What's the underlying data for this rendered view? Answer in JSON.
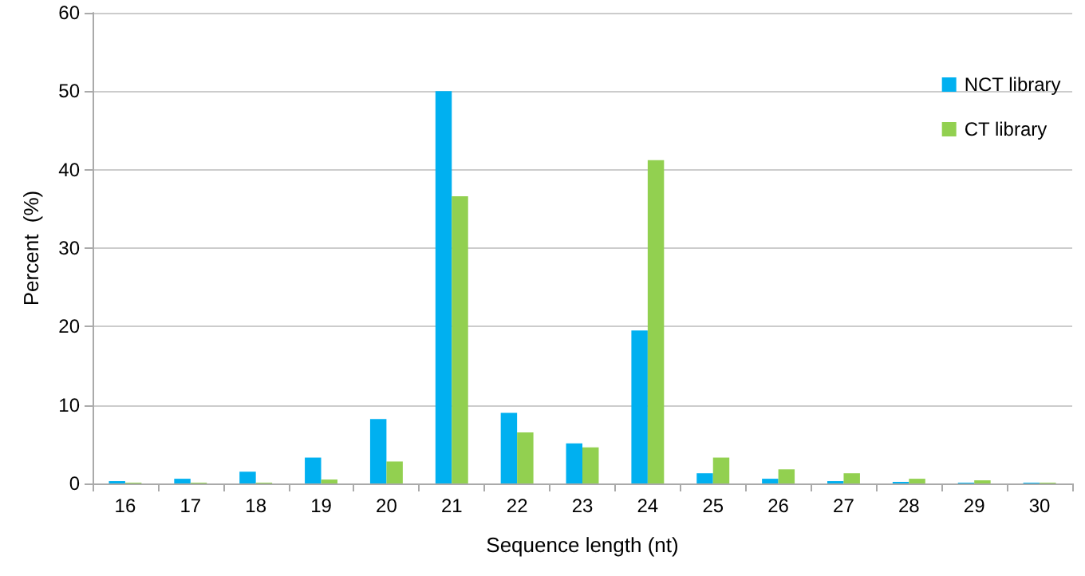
{
  "chart_data": {
    "type": "bar",
    "xlabel": "Sequence length (nt)",
    "ylabel": "Percent  (%)",
    "categories": [
      "16",
      "17",
      "18",
      "19",
      "20",
      "21",
      "22",
      "23",
      "24",
      "25",
      "26",
      "27",
      "28",
      "29",
      "30"
    ],
    "series": [
      {
        "name": "NCT library",
        "color": "#00b0f0",
        "values": [
          0.3,
          0.6,
          1.5,
          3.3,
          8.2,
          50,
          9.0,
          5.1,
          19.5,
          1.3,
          0.6,
          0.3,
          0.2,
          0.1,
          0.1
        ]
      },
      {
        "name": "CT library",
        "color": "#92d050",
        "values": [
          0.1,
          0.1,
          0.1,
          0.5,
          2.8,
          36.6,
          6.5,
          4.6,
          41.2,
          3.3,
          1.8,
          1.3,
          0.6,
          0.4,
          0.1
        ]
      }
    ],
    "ylim": [
      0,
      60
    ],
    "yticks": [
      0,
      10,
      20,
      30,
      40,
      50,
      60
    ],
    "grid": "y",
    "legend": "top right"
  }
}
